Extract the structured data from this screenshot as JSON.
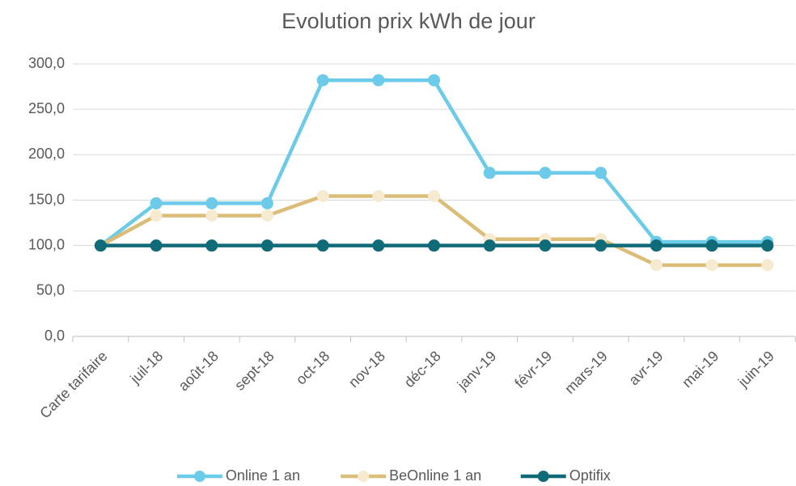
{
  "chart_data": {
    "type": "line",
    "title": "Evolution prix kWh de jour",
    "categories": [
      "Carte tarifaire",
      "juil-18",
      "août-18",
      "sept-18",
      "oct-18",
      "nov-18",
      "déc-18",
      "janv-19",
      "févr-19",
      "mars-19",
      "avr-19",
      "mai-19",
      "juin-19"
    ],
    "series": [
      {
        "name": "Online 1 an",
        "color": "#6ccbe8",
        "marker_color": "#6ccbe8",
        "values": [
          100,
          146.5,
          146.5,
          146.5,
          282,
          282,
          282,
          180,
          180,
          180,
          104,
          104,
          104
        ]
      },
      {
        "name": "BeOnline 1 an",
        "color": "#dcbd78",
        "marker_color": "#f6ead0",
        "values": [
          100,
          133,
          133,
          133,
          154.5,
          154.5,
          154.5,
          107,
          107,
          107,
          78.5,
          78.5,
          78.5
        ]
      },
      {
        "name": "Optifix",
        "color": "#106b78",
        "marker_color": "#106b78",
        "values": [
          100,
          100,
          100,
          100,
          100,
          100,
          100,
          100,
          100,
          100,
          100,
          100,
          100
        ]
      }
    ],
    "ylim": [
      0,
      300
    ],
    "yticks": [
      {
        "value": 0,
        "label": "0,0"
      },
      {
        "value": 50,
        "label": "50,0"
      },
      {
        "value": 100,
        "label": "100,0"
      },
      {
        "value": 150,
        "label": "150,0"
      },
      {
        "value": 200,
        "label": "200,0"
      },
      {
        "value": 250,
        "label": "250,0"
      },
      {
        "value": 300,
        "label": "300,0"
      }
    ],
    "grid": true,
    "legend": "bottom"
  }
}
